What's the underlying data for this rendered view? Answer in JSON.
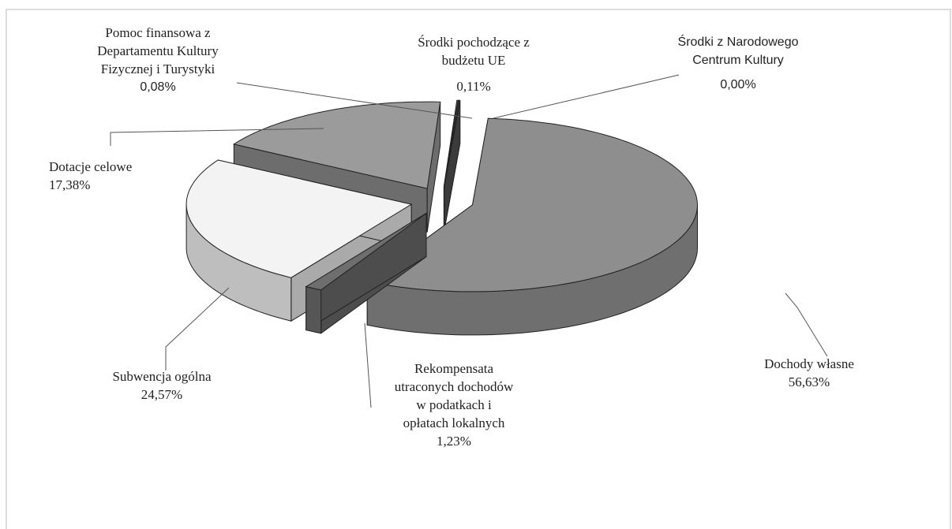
{
  "chart_data": {
    "type": "pie",
    "categories": [
      "Dochody własne",
      "Rekompensata\nutraconych dochodów\nw  podatkach i\nopłatach lokalnych",
      "Subwencja ogólna",
      "Dotacje celowe",
      "Pomoc finansowa z\nDepartamentu Kultury\nFizycznej i Turystyki",
      "Środki pochodzące z\nbudżetu UE",
      "Środki z Narodowego\nCentrum Kultury"
    ],
    "values": [
      56.63,
      1.23,
      24.57,
      17.38,
      0.08,
      0.11,
      0.0
    ],
    "value_labels": [
      "56,63%",
      "1,23%",
      "24,57%",
      "17,38%",
      "0,08%",
      "0,11%",
      "0,00%"
    ],
    "colors": [
      "#8e8e8e",
      "#6e6e6e",
      "#f3f3f3",
      "#9b9b9b",
      "#8a8a8a",
      "#3c3c3c",
      "#555555"
    ]
  }
}
